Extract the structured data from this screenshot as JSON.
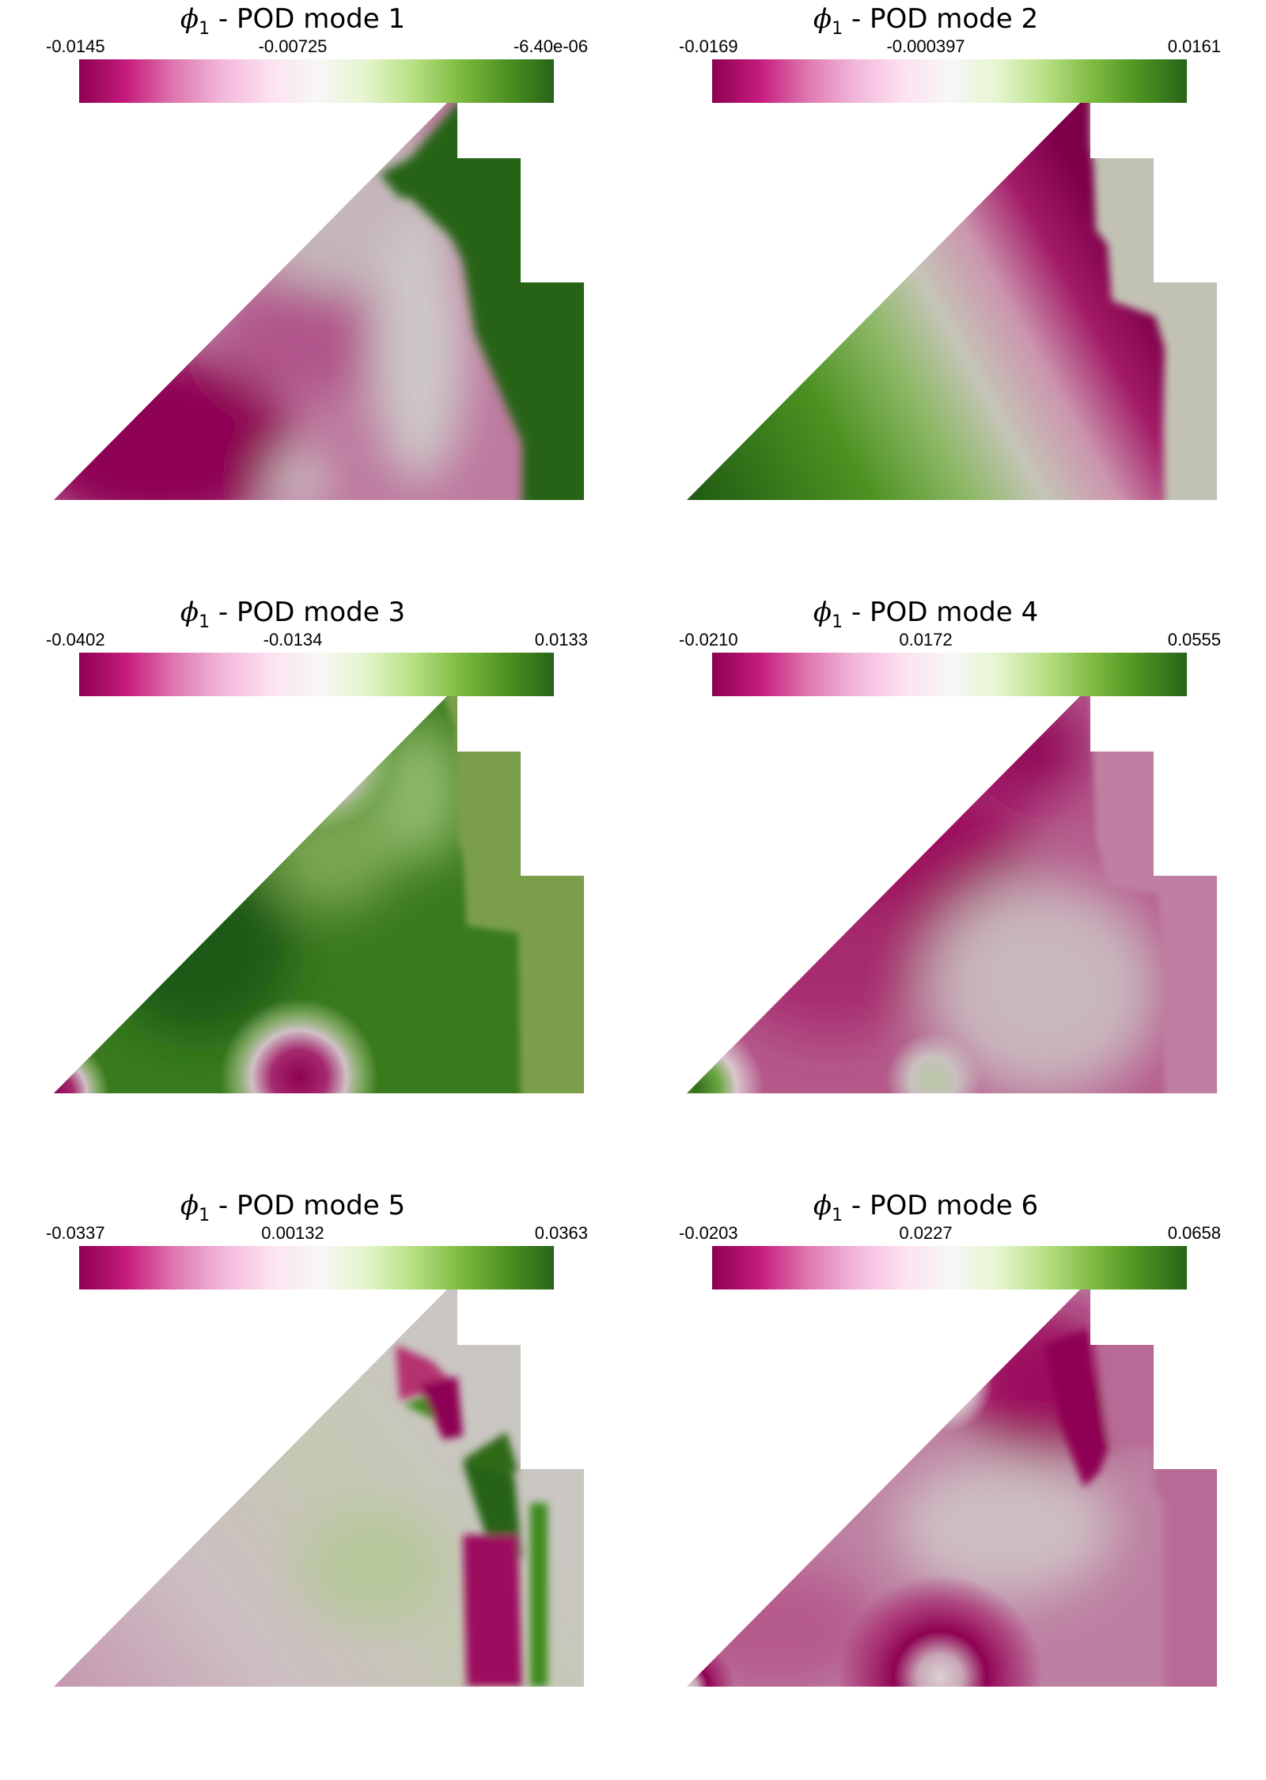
{
  "panels": [
    {
      "title_var": "ϕ",
      "title_sub": "1",
      "title_rest": " - POD mode 1",
      "min": "-0.0145",
      "mid": "-0.00725",
      "max": "-6.40e-06"
    },
    {
      "title_var": "ϕ",
      "title_sub": "1",
      "title_rest": " - POD mode 2",
      "min": "-0.0169",
      "mid": "-0.000397",
      "max": "0.0161"
    },
    {
      "title_var": "ϕ",
      "title_sub": "1",
      "title_rest": " - POD mode 3",
      "min": "-0.0402",
      "mid": "-0.0134",
      "max": "0.0133"
    },
    {
      "title_var": "ϕ",
      "title_sub": "1",
      "title_rest": " - POD mode 4",
      "min": "-0.0210",
      "mid": "0.0172",
      "max": "0.0555"
    },
    {
      "title_var": "ϕ",
      "title_sub": "1",
      "title_rest": " - POD mode 5",
      "min": "-0.0337",
      "mid": "0.00132",
      "max": "0.0363"
    },
    {
      "title_var": "ϕ",
      "title_sub": "1",
      "title_rest": " - POD mode 6",
      "min": "-0.0203",
      "mid": "0.0227",
      "max": "0.0658"
    }
  ],
  "colormap": [
    "#8e0152",
    "#c51b7d",
    "#de77ae",
    "#f1b6da",
    "#fde0ef",
    "#f7f7f7",
    "#e6f5d0",
    "#b8e186",
    "#7fbc41",
    "#4d9221",
    "#276419"
  ]
}
